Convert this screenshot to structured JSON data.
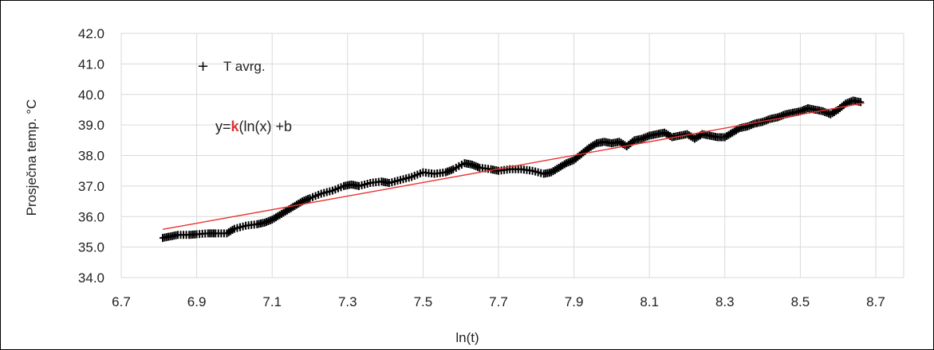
{
  "chart_data": {
    "type": "scatter",
    "xlabel": "ln(t)",
    "ylabel": "Prosječna temp. °C",
    "xlim": [
      6.7,
      8.8
    ],
    "ylim": [
      34.0,
      42.0
    ],
    "x_ticks": [
      "6.7",
      "6.9",
      "7.1",
      "7.3",
      "7.5",
      "7.7",
      "7.9",
      "8.1",
      "8.3",
      "8.5",
      "8.7"
    ],
    "y_ticks": [
      "34.0",
      "35.0",
      "36.0",
      "37.0",
      "38.0",
      "39.0",
      "40.0",
      "41.0",
      "42.0"
    ],
    "grid": "on",
    "legend_position": "top-left",
    "series": [
      {
        "name": "T avrg.",
        "marker": "+",
        "color": "#000000",
        "points": [
          [
            6.81,
            35.3
          ],
          [
            6.83,
            35.35
          ],
          [
            6.85,
            35.4
          ],
          [
            6.88,
            35.4
          ],
          [
            6.9,
            35.42
          ],
          [
            6.93,
            35.45
          ],
          [
            6.95,
            35.45
          ],
          [
            6.98,
            35.45
          ],
          [
            7.0,
            35.6
          ],
          [
            7.03,
            35.7
          ],
          [
            7.06,
            35.75
          ],
          [
            7.08,
            35.8
          ],
          [
            7.1,
            35.9
          ],
          [
            7.12,
            36.05
          ],
          [
            7.14,
            36.2
          ],
          [
            7.16,
            36.35
          ],
          [
            7.18,
            36.5
          ],
          [
            7.2,
            36.6
          ],
          [
            7.23,
            36.75
          ],
          [
            7.26,
            36.85
          ],
          [
            7.29,
            37.0
          ],
          [
            7.31,
            37.05
          ],
          [
            7.33,
            37.0
          ],
          [
            7.36,
            37.1
          ],
          [
            7.39,
            37.15
          ],
          [
            7.41,
            37.1
          ],
          [
            7.44,
            37.2
          ],
          [
            7.47,
            37.3
          ],
          [
            7.5,
            37.45
          ],
          [
            7.53,
            37.4
          ],
          [
            7.56,
            37.45
          ],
          [
            7.58,
            37.55
          ],
          [
            7.61,
            37.75
          ],
          [
            7.63,
            37.7
          ],
          [
            7.65,
            37.6
          ],
          [
            7.68,
            37.55
          ],
          [
            7.7,
            37.5
          ],
          [
            7.73,
            37.55
          ],
          [
            7.76,
            37.55
          ],
          [
            7.79,
            37.5
          ],
          [
            7.82,
            37.4
          ],
          [
            7.84,
            37.45
          ],
          [
            7.86,
            37.6
          ],
          [
            7.88,
            37.75
          ],
          [
            7.9,
            37.85
          ],
          [
            7.92,
            38.05
          ],
          [
            7.94,
            38.25
          ],
          [
            7.96,
            38.4
          ],
          [
            7.98,
            38.45
          ],
          [
            8.0,
            38.4
          ],
          [
            8.02,
            38.45
          ],
          [
            8.04,
            38.3
          ],
          [
            8.06,
            38.5
          ],
          [
            8.08,
            38.55
          ],
          [
            8.1,
            38.65
          ],
          [
            8.12,
            38.7
          ],
          [
            8.14,
            38.75
          ],
          [
            8.16,
            38.6
          ],
          [
            8.18,
            38.65
          ],
          [
            8.2,
            38.7
          ],
          [
            8.22,
            38.55
          ],
          [
            8.24,
            38.7
          ],
          [
            8.26,
            38.65
          ],
          [
            8.28,
            38.6
          ],
          [
            8.3,
            38.6
          ],
          [
            8.32,
            38.75
          ],
          [
            8.34,
            38.9
          ],
          [
            8.36,
            38.95
          ],
          [
            8.38,
            39.05
          ],
          [
            8.4,
            39.1
          ],
          [
            8.42,
            39.2
          ],
          [
            8.44,
            39.25
          ],
          [
            8.46,
            39.35
          ],
          [
            8.48,
            39.4
          ],
          [
            8.5,
            39.45
          ],
          [
            8.52,
            39.55
          ],
          [
            8.54,
            39.5
          ],
          [
            8.56,
            39.45
          ],
          [
            8.58,
            39.35
          ],
          [
            8.6,
            39.5
          ],
          [
            8.62,
            39.7
          ],
          [
            8.64,
            39.8
          ],
          [
            8.66,
            39.75
          ]
        ]
      },
      {
        "type": "line",
        "color": "#e8312f",
        "points": [
          [
            6.81,
            35.58
          ],
          [
            8.67,
            39.72
          ]
        ]
      }
    ],
    "annotations": {
      "equation_prefix": "y=",
      "equation_k": "k",
      "equation_suffix": "(ln(x) +b",
      "k_color": "#e03030"
    }
  }
}
